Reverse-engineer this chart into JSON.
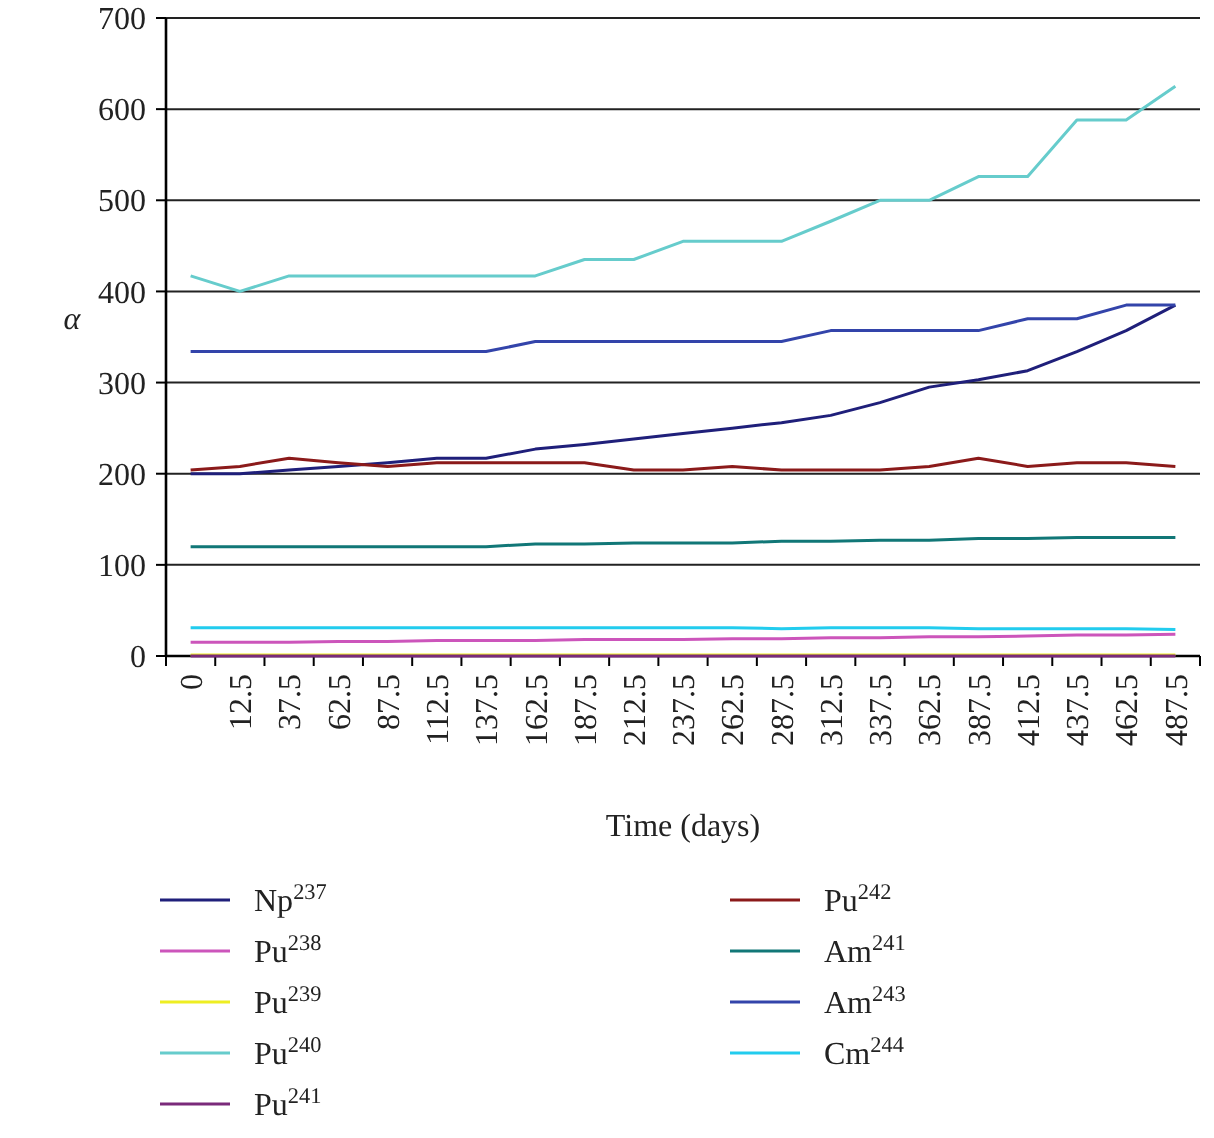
{
  "chart_data": {
    "type": "line",
    "xlabel": "Time (days)",
    "ylabel": "α",
    "categories": [
      "0",
      "12.5",
      "37.5",
      "62.5",
      "87.5",
      "112.5",
      "137.5",
      "162.5",
      "187.5",
      "212.5",
      "237.5",
      "262.5",
      "287.5",
      "312.5",
      "337.5",
      "362.5",
      "387.5",
      "412.5",
      "437.5",
      "462.5",
      "487.5"
    ],
    "ylim": [
      0,
      700
    ],
    "yticks": [
      0,
      100,
      200,
      300,
      400,
      500,
      600,
      700
    ],
    "grid": "y",
    "legend": "bottom",
    "marker": "none",
    "line_style": "solid",
    "series": [
      {
        "name": "Np$^{237}$",
        "color": "#1f1f7a",
        "values": [
          200,
          200,
          204,
          208,
          212,
          217,
          217,
          227,
          232,
          238,
          244,
          250,
          256,
          264,
          278,
          295,
          303,
          313,
          334,
          357,
          385
        ]
      },
      {
        "name": "Pu$^{238}$",
        "color": "#cc55bb",
        "values": [
          15,
          15,
          15,
          16,
          16,
          17,
          17,
          17,
          18,
          18,
          18,
          19,
          19,
          20,
          20,
          21,
          21,
          22,
          23,
          23,
          24
        ]
      },
      {
        "name": "Pu$^{239}$",
        "color": "#eeee22",
        "values": [
          1,
          1,
          1,
          1,
          1,
          1,
          1,
          1,
          1,
          1,
          1,
          1,
          1,
          1,
          1,
          1,
          1,
          1,
          1,
          1,
          1
        ]
      },
      {
        "name": "Pu$^{240}$",
        "color": "#66cccc",
        "values": [
          417,
          400,
          417,
          417,
          417,
          417,
          417,
          417,
          435,
          435,
          455,
          455,
          455,
          477,
          500,
          500,
          526,
          526,
          588,
          588,
          625
        ]
      },
      {
        "name": "Pu$^{241}$",
        "color": "#7a2a7a",
        "values": [
          0,
          0,
          0,
          0,
          0,
          0,
          0,
          0,
          0,
          0,
          0,
          0,
          0,
          0,
          0,
          0,
          0,
          0,
          0,
          0,
          0
        ]
      },
      {
        "name": "Pu$^{242}$",
        "color": "#8b1a1a",
        "values": [
          204,
          208,
          217,
          212,
          208,
          212,
          212,
          212,
          212,
          204,
          204,
          208,
          204,
          204,
          204,
          208,
          217,
          208,
          212,
          212,
          208
        ]
      },
      {
        "name": "Am$^{241}$",
        "color": "#117777",
        "values": [
          120,
          120,
          120,
          120,
          120,
          120,
          120,
          123,
          123,
          124,
          124,
          124,
          126,
          126,
          127,
          127,
          129,
          129,
          130,
          130,
          130
        ]
      },
      {
        "name": "Am$^{243}$",
        "color": "#3344aa",
        "values": [
          334,
          334,
          334,
          334,
          334,
          334,
          334,
          345,
          345,
          345,
          345,
          345,
          345,
          357,
          357,
          357,
          357,
          370,
          370,
          385,
          385
        ]
      },
      {
        "name": "Cm$^{244}$",
        "color": "#22ccee",
        "values": [
          31,
          31,
          31,
          31,
          31,
          31,
          31,
          31,
          31,
          31,
          31,
          31,
          30,
          31,
          31,
          31,
          30,
          30,
          30,
          30,
          29
        ]
      }
    ]
  }
}
